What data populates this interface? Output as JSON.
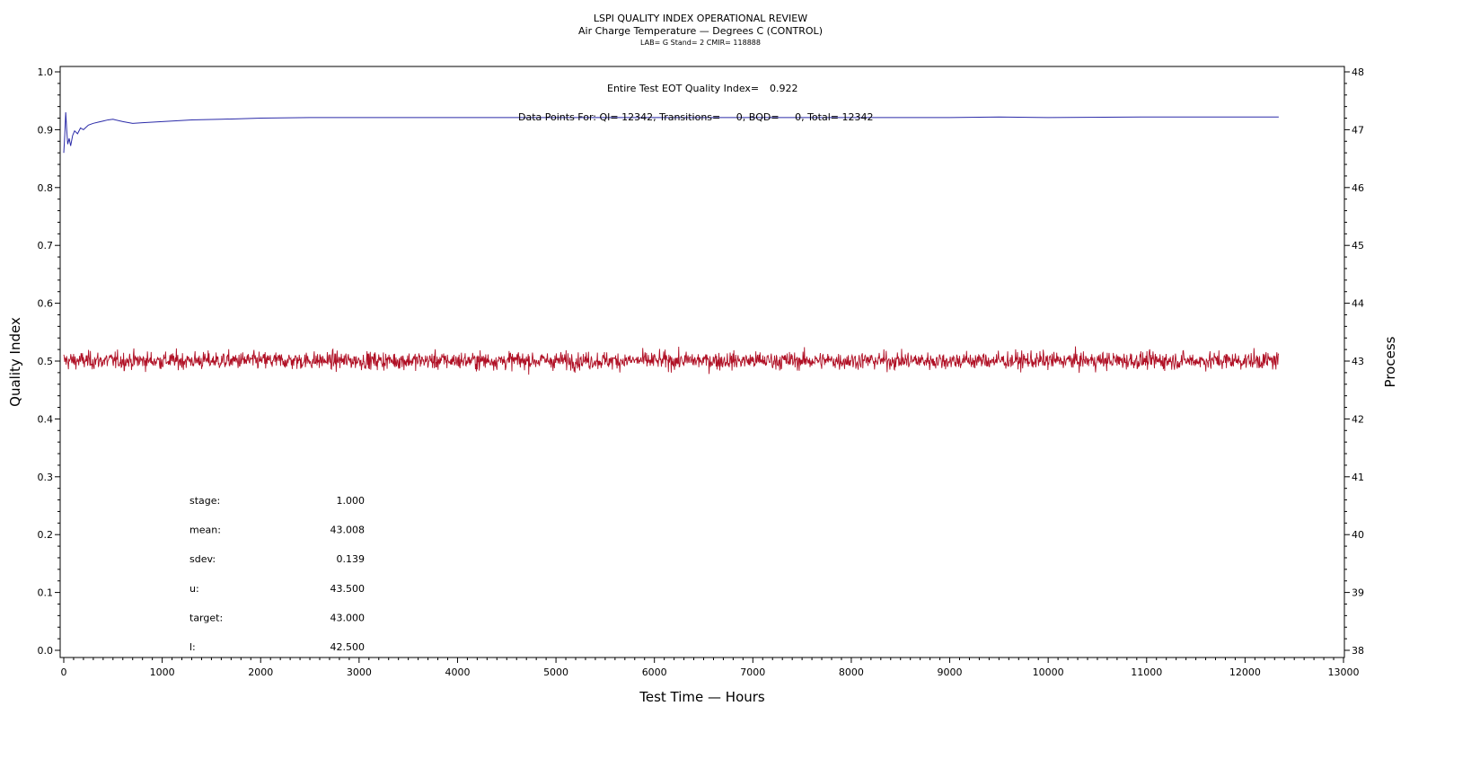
{
  "chart_data": {
    "type": "line",
    "title": "LSPI QUALITY INDEX OPERATIONAL REVIEW",
    "subtitle": "Air Charge Temperature — Degrees C (CONTROL)",
    "subtitle2": "LAB= G Stand= 2 CMIR= 118888",
    "xlabel": "Test Time — Hours",
    "ylabel": "Quality Index",
    "y2label": "Process",
    "xlim": [
      0,
      13000
    ],
    "ylim": [
      0.0,
      1.0
    ],
    "y2lim": [
      38,
      48
    ],
    "x_ticks": [
      "0",
      "1000",
      "2000",
      "3000",
      "4000",
      "5000",
      "6000",
      "7000",
      "8000",
      "9000",
      "10000",
      "11000",
      "12000",
      "13000"
    ],
    "y_ticks": [
      "0.0",
      "0.1",
      "0.2",
      "0.3",
      "0.4",
      "0.5",
      "0.6",
      "0.7",
      "0.8",
      "0.9",
      "1.0"
    ],
    "y2_ticks": [
      "38",
      "39",
      "40",
      "41",
      "42",
      "43",
      "44",
      "45",
      "46",
      "47",
      "48"
    ],
    "annotations": {
      "eot_label": "Entire Test EOT Quality Index=",
      "eot_value": "0.922",
      "points_line": "Data Points For: QI= 12342, Transitions=     0, BQD=     0, Total= 12342"
    },
    "stats": [
      {
        "label": "stage:",
        "value": "1.000"
      },
      {
        "label": "mean:",
        "value": "43.008"
      },
      {
        "label": "sdev:",
        "value": "0.139"
      },
      {
        "label": "u:",
        "value": "43.500"
      },
      {
        "label": "target:",
        "value": "43.000"
      },
      {
        "label": "l:",
        "value": "42.500"
      }
    ],
    "series": [
      {
        "axis": "left",
        "color": "#2a2aa8",
        "x": [
          0,
          10,
          20,
          30,
          40,
          55,
          70,
          90,
          110,
          140,
          170,
          200,
          250,
          300,
          350,
          400,
          450,
          500,
          600,
          700,
          800,
          1000,
          1300,
          1600,
          2000,
          2500,
          3000,
          3500,
          4000,
          4500,
          5000,
          6000,
          7000,
          8000,
          9000,
          9500,
          10000,
          11000,
          12000,
          12342
        ],
        "y": [
          0.86,
          0.89,
          0.93,
          0.9,
          0.875,
          0.885,
          0.872,
          0.89,
          0.898,
          0.893,
          0.903,
          0.9,
          0.908,
          0.911,
          0.913,
          0.915,
          0.917,
          0.918,
          0.914,
          0.911,
          0.912,
          0.914,
          0.917,
          0.918,
          0.92,
          0.921,
          0.921,
          0.921,
          0.921,
          0.921,
          0.921,
          0.921,
          0.921,
          0.921,
          0.921,
          0.922,
          0.921,
          0.922,
          0.922,
          0.922
        ]
      },
      {
        "axis": "right",
        "color": "#b01025",
        "description_n": 12342,
        "x_range": [
          0,
          12342
        ],
        "mean": 43.008,
        "sdev": 0.139
      }
    ],
    "grid": false
  }
}
